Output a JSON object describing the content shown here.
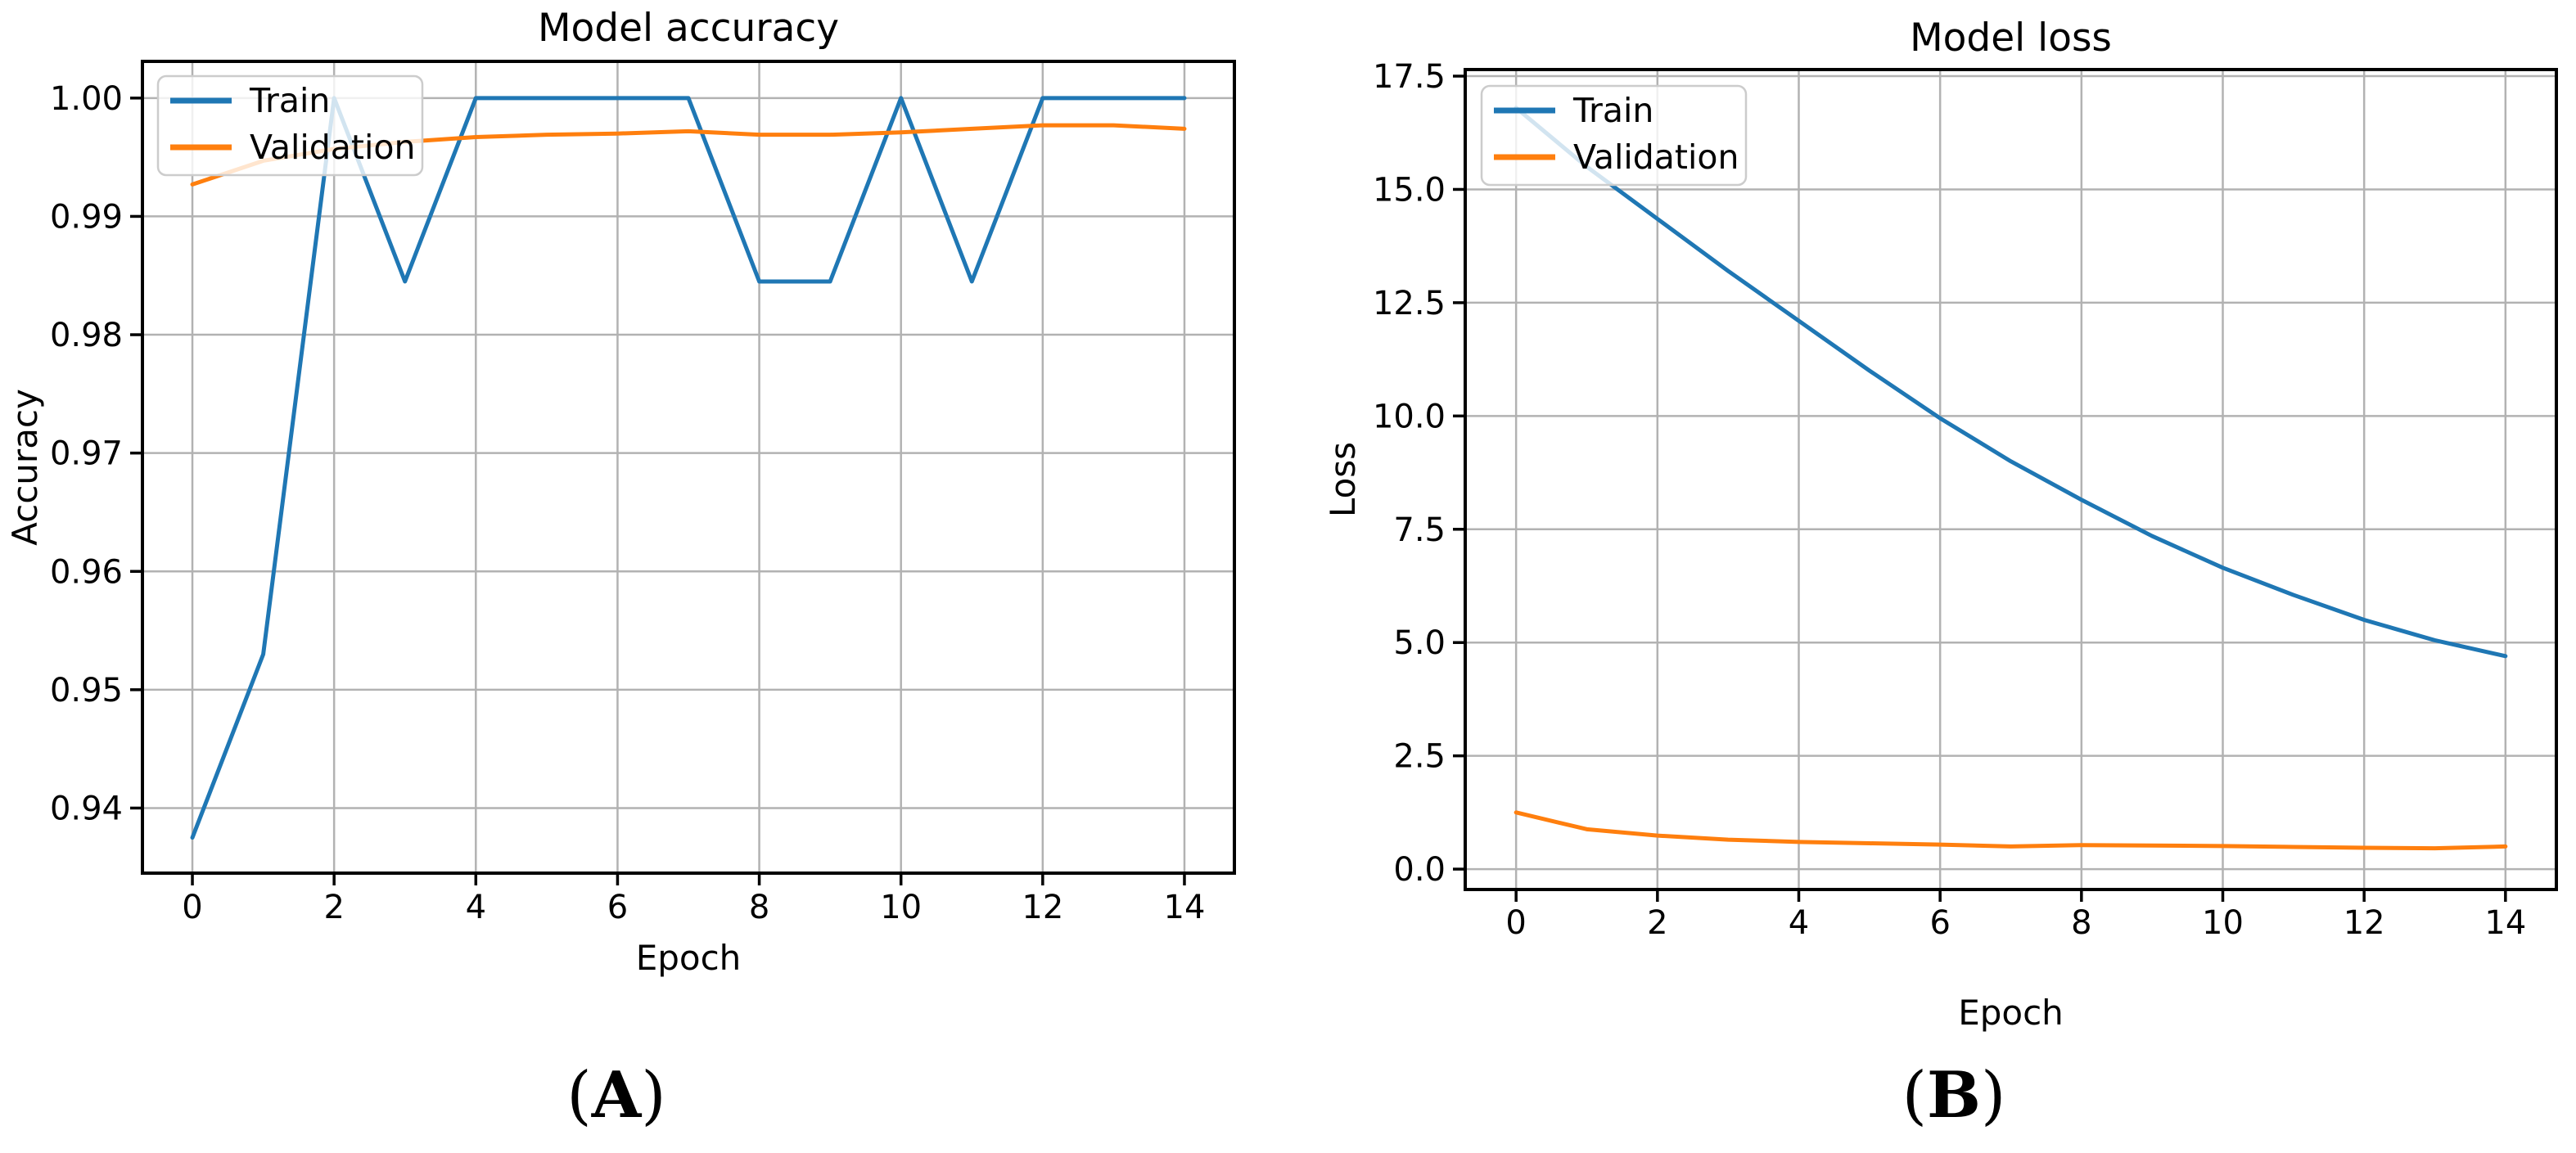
{
  "page": {
    "background": "#ffffff"
  },
  "captions": {
    "a": {
      "open": "(",
      "letter": "A",
      "close": ")"
    },
    "b": {
      "open": "(",
      "letter": "B",
      "close": ")"
    }
  },
  "chart_data": [
    {
      "id": "accuracy",
      "type": "line",
      "title": "Model accuracy",
      "xlabel": "Epoch",
      "ylabel": "Accuracy",
      "grid": true,
      "grid_color": "#b2b2b2",
      "spine_color": "#000000",
      "legend_position": "upper left",
      "x": [
        0,
        1,
        2,
        3,
        4,
        5,
        6,
        7,
        8,
        9,
        10,
        11,
        12,
        13,
        14
      ],
      "xlim": [
        -0.705,
        14.705
      ],
      "ylim": [
        0.9345,
        1.0031
      ],
      "xticks": [
        0,
        2,
        4,
        6,
        8,
        10,
        12,
        14
      ],
      "xtick_labels": [
        "0",
        "2",
        "4",
        "6",
        "8",
        "10",
        "12",
        "14"
      ],
      "yticks": [
        0.94,
        0.95,
        0.96,
        0.97,
        0.98,
        0.99,
        1.0
      ],
      "ytick_labels": [
        "0.94",
        "0.95",
        "0.96",
        "0.97",
        "0.98",
        "0.99",
        "1.00"
      ],
      "series": [
        {
          "name": "Train",
          "color": "#1f77b4",
          "values": [
            0.9375,
            0.953,
            1.0,
            0.9845,
            1.0,
            1.0,
            1.0,
            1.0,
            0.9845,
            0.9845,
            1.0,
            0.9845,
            1.0,
            1.0,
            1.0
          ]
        },
        {
          "name": "Validation",
          "color": "#ff7f0e",
          "values": [
            0.9927,
            0.9947,
            0.9957,
            0.9963,
            0.9967,
            0.9969,
            0.997,
            0.9972,
            0.9969,
            0.9969,
            0.9971,
            0.9974,
            0.9977,
            0.9977,
            0.9974
          ]
        }
      ]
    },
    {
      "id": "loss",
      "type": "line",
      "title": "Model loss",
      "xlabel": "Epoch",
      "ylabel": "Loss",
      "grid": true,
      "grid_color": "#b2b2b2",
      "spine_color": "#000000",
      "legend_position": "upper left",
      "x": [
        0,
        1,
        2,
        3,
        4,
        5,
        6,
        7,
        8,
        9,
        10,
        11,
        12,
        13,
        14
      ],
      "xlim": [
        -0.72,
        14.72
      ],
      "ylim": [
        -0.45,
        17.645
      ],
      "xticks": [
        0,
        2,
        4,
        6,
        8,
        10,
        12,
        14
      ],
      "xtick_labels": [
        "0",
        "2",
        "4",
        "6",
        "8",
        "10",
        "12",
        "14"
      ],
      "yticks": [
        0.0,
        2.5,
        5.0,
        7.5,
        10.0,
        12.5,
        15.0,
        17.5
      ],
      "ytick_labels": [
        "0.0",
        "2.5",
        "5.0",
        "7.5",
        "10.0",
        "12.5",
        "15.0",
        "17.5"
      ],
      "series": [
        {
          "name": "Train",
          "color": "#1f77b4",
          "values": [
            16.8,
            15.5,
            14.35,
            13.2,
            12.1,
            11.0,
            9.95,
            9.0,
            8.15,
            7.35,
            6.65,
            6.05,
            5.5,
            5.05,
            4.7
          ]
        },
        {
          "name": "Validation",
          "color": "#ff7f0e",
          "values": [
            1.25,
            0.88,
            0.74,
            0.65,
            0.6,
            0.57,
            0.54,
            0.5,
            0.53,
            0.52,
            0.51,
            0.49,
            0.47,
            0.46,
            0.5
          ]
        }
      ]
    }
  ]
}
